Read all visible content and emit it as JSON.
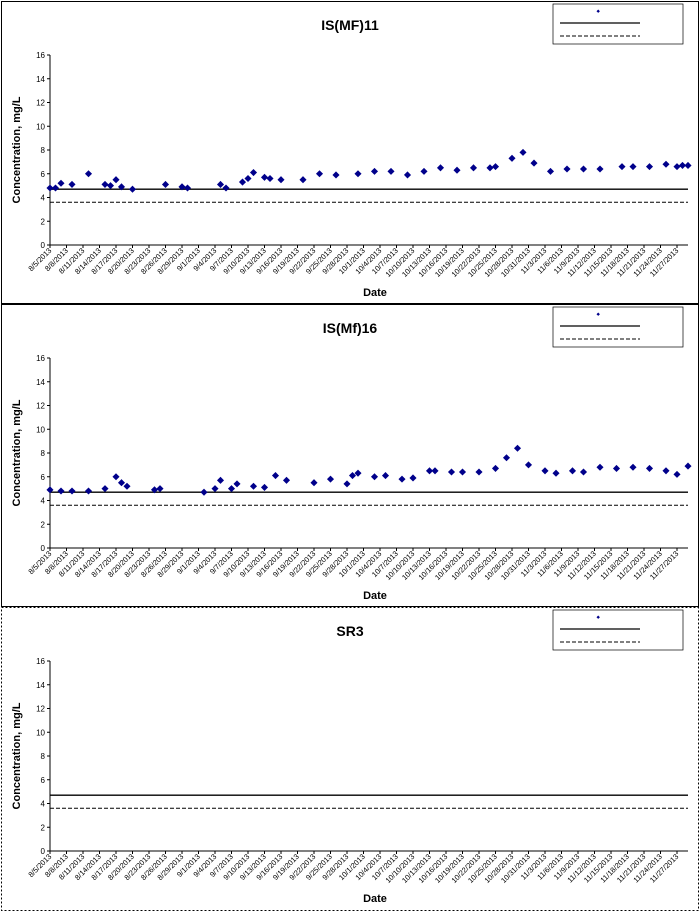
{
  "colors": {
    "marker": "#00008B",
    "frame": "#000000"
  },
  "chart_data": [
    {
      "type": "scatter",
      "title": "IS(MF)11",
      "xlabel": "Date",
      "ylabel": "Concentration, mg/L",
      "ylim": [
        0,
        16
      ],
      "yticks": [
        0,
        2,
        4,
        6,
        8,
        10,
        12,
        14,
        16
      ],
      "xlim": [
        "8/5/2013",
        "11/29/2013"
      ],
      "xticks": [
        "8/5/2013",
        "8/8/2013",
        "8/11/2013",
        "8/14/2013",
        "8/17/2013",
        "8/20/2013",
        "8/23/2013",
        "8/26/2013",
        "8/29/2013",
        "9/1/2013",
        "9/4/2013",
        "9/7/2013",
        "9/10/2013",
        "9/13/2013",
        "9/16/2013",
        "9/19/2013",
        "9/22/2013",
        "9/25/2013",
        "9/28/2013",
        "10/1/2013",
        "10/4/2013",
        "10/7/2013",
        "10/10/2013",
        "10/13/2013",
        "10/16/2013",
        "10/19/2013",
        "10/22/2013",
        "10/25/2013",
        "10/28/2013",
        "10/31/2013",
        "11/3/2013",
        "11/6/2013",
        "11/9/2013",
        "11/12/2013",
        "11/15/2013",
        "11/18/2013",
        "11/21/2013",
        "11/24/2013",
        "11/27/2013"
      ],
      "grid": false,
      "legend": "top-right",
      "reference_lines": [
        {
          "style": "solid",
          "value": 4.7
        },
        {
          "style": "dashed",
          "value": 3.6
        }
      ],
      "x": [
        "8/5/2013",
        "8/6/2013",
        "8/7/2013",
        "8/9/2013",
        "8/12/2013",
        "8/15/2013",
        "8/16/2013",
        "8/17/2013",
        "8/18/2013",
        "8/20/2013",
        "8/26/2013",
        "8/29/2013",
        "8/30/2013",
        "9/5/2013",
        "9/6/2013",
        "9/9/2013",
        "9/10/2013",
        "9/11/2013",
        "9/13/2013",
        "9/14/2013",
        "9/16/2013",
        "9/20/2013",
        "9/23/2013",
        "9/26/2013",
        "9/30/2013",
        "10/3/2013",
        "10/6/2013",
        "10/9/2013",
        "10/12/2013",
        "10/15/2013",
        "10/18/2013",
        "10/21/2013",
        "10/24/2013",
        "10/25/2013",
        "10/28/2013",
        "10/30/2013",
        "11/1/2013",
        "11/4/2013",
        "11/7/2013",
        "11/10/2013",
        "11/13/2013",
        "11/17/2013",
        "11/19/2013",
        "11/22/2013",
        "11/25/2013",
        "11/27/2013",
        "11/28/2013",
        "11/29/2013"
      ],
      "y": [
        4.8,
        4.8,
        5.2,
        5.1,
        6.0,
        5.1,
        5.0,
        5.5,
        4.9,
        4.7,
        5.1,
        4.9,
        4.8,
        5.1,
        4.8,
        5.3,
        5.6,
        6.1,
        5.7,
        5.6,
        5.5,
        5.5,
        6.0,
        5.9,
        6.0,
        6.2,
        6.2,
        5.9,
        6.2,
        6.5,
        6.3,
        6.5,
        6.5,
        6.6,
        7.3,
        7.8,
        6.9,
        6.2,
        6.4,
        6.4,
        6.4,
        6.6,
        6.6,
        6.6,
        6.8,
        6.6,
        6.7,
        6.7
      ]
    },
    {
      "type": "scatter",
      "title": "IS(Mf)16",
      "xlabel": "Date",
      "ylabel": "Concentration, mg/L",
      "ylim": [
        0,
        16
      ],
      "yticks": [
        0,
        2,
        4,
        6,
        8,
        10,
        12,
        14,
        16
      ],
      "xlim": [
        "8/5/2013",
        "11/29/2013"
      ],
      "xticks": [
        "8/5/2013",
        "8/8/2013",
        "8/11/2013",
        "8/14/2013",
        "8/17/2013",
        "8/20/2013",
        "8/23/2013",
        "8/26/2013",
        "8/29/2013",
        "9/1/2013",
        "9/4/2013",
        "9/7/2013",
        "9/10/2013",
        "9/13/2013",
        "9/16/2013",
        "9/19/2013",
        "9/22/2013",
        "9/25/2013",
        "9/28/2013",
        "10/1/2013",
        "10/4/2013",
        "10/7/2013",
        "10/10/2013",
        "10/13/2013",
        "10/16/2013",
        "10/19/2013",
        "10/22/2013",
        "10/25/2013",
        "10/28/2013",
        "10/31/2013",
        "11/3/2013",
        "11/6/2013",
        "11/9/2013",
        "11/12/2013",
        "11/15/2013",
        "11/18/2013",
        "11/21/2013",
        "11/24/2013",
        "11/27/2013"
      ],
      "grid": false,
      "legend": "top-right",
      "reference_lines": [
        {
          "style": "solid",
          "value": 4.7
        },
        {
          "style": "dashed",
          "value": 3.6
        }
      ],
      "x": [
        "8/5/2013",
        "8/7/2013",
        "8/9/2013",
        "8/12/2013",
        "8/15/2013",
        "8/17/2013",
        "8/18/2013",
        "8/19/2013",
        "8/24/2013",
        "8/25/2013",
        "9/2/2013",
        "9/4/2013",
        "9/5/2013",
        "9/7/2013",
        "9/8/2013",
        "9/11/2013",
        "9/13/2013",
        "9/15/2013",
        "9/17/2013",
        "9/22/2013",
        "9/25/2013",
        "9/28/2013",
        "9/29/2013",
        "9/30/2013",
        "10/3/2013",
        "10/5/2013",
        "10/8/2013",
        "10/10/2013",
        "10/13/2013",
        "10/14/2013",
        "10/17/2013",
        "10/19/2013",
        "10/22/2013",
        "10/25/2013",
        "10/27/2013",
        "10/29/2013",
        "10/31/2013",
        "11/3/2013",
        "11/5/2013",
        "11/8/2013",
        "11/10/2013",
        "11/13/2013",
        "11/16/2013",
        "11/19/2013",
        "11/22/2013",
        "11/25/2013",
        "11/27/2013",
        "11/29/2013"
      ],
      "y": [
        4.9,
        4.8,
        4.8,
        4.8,
        5.0,
        6.0,
        5.5,
        5.2,
        4.9,
        5.0,
        4.7,
        5.0,
        5.7,
        5.0,
        5.4,
        5.2,
        5.1,
        6.1,
        5.7,
        5.5,
        5.8,
        5.4,
        6.1,
        6.3,
        6.0,
        6.1,
        5.8,
        5.9,
        6.5,
        6.5,
        6.4,
        6.4,
        6.4,
        6.7,
        7.6,
        8.4,
        7.0,
        6.5,
        6.3,
        6.5,
        6.4,
        6.8,
        6.7,
        6.8,
        6.7,
        6.5,
        6.2,
        6.9
      ]
    },
    {
      "type": "scatter",
      "title": "SR3",
      "xlabel": "Date",
      "ylabel": "Concentration, mg/L",
      "ylim": [
        0,
        16
      ],
      "yticks": [
        0,
        2,
        4,
        6,
        8,
        10,
        12,
        14,
        16
      ],
      "xlim": [
        "8/5/2013",
        "11/29/2013"
      ],
      "xticks": [
        "8/5/2013",
        "8/8/2013",
        "8/11/2013",
        "8/14/2013",
        "8/17/2013",
        "8/20/2013",
        "8/23/2013",
        "8/26/2013",
        "8/29/2013",
        "9/1/2013",
        "9/4/2013",
        "9/7/2013",
        "9/10/2013",
        "9/13/2013",
        "9/16/2013",
        "9/19/2013",
        "9/22/2013",
        "9/25/2013",
        "9/28/2013",
        "10/1/2013",
        "10/4/2013",
        "10/7/2013",
        "10/10/2013",
        "10/13/2013",
        "10/16/2013",
        "10/19/2013",
        "10/22/2013",
        "10/25/2013",
        "10/28/2013",
        "10/31/2013",
        "11/3/2013",
        "11/6/2013",
        "11/9/2013",
        "11/12/2013",
        "11/15/2013",
        "11/18/2013",
        "11/21/2013",
        "11/24/2013",
        "11/27/2013"
      ],
      "grid": false,
      "legend": "top-right",
      "reference_lines": [
        {
          "style": "solid",
          "value": 4.7
        },
        {
          "style": "dashed",
          "value": 3.6
        }
      ],
      "x": [],
      "y": []
    }
  ]
}
